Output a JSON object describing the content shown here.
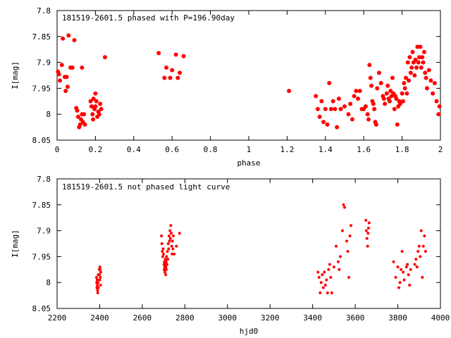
{
  "chart_data": [
    {
      "type": "scatter",
      "title": "181519-2601.5 phased with P=196.90day",
      "xlabel": "phase",
      "ylabel": "I[mag]",
      "xlim": [
        0,
        2
      ],
      "ylim": [
        8.05,
        7.8
      ],
      "y_inverted": true,
      "x_ticks": [
        "0",
        "0.2",
        "0.4",
        "0.6",
        "0.8",
        "1",
        "1.2",
        "1.4",
        "1.6",
        "1.8",
        "2"
      ],
      "x_tick_values": [
        0,
        0.2,
        0.4,
        0.6,
        0.8,
        1.0,
        1.2,
        1.4,
        1.6,
        1.8,
        2.0
      ],
      "y_ticks": [
        "7.8",
        "7.85",
        "7.9",
        "7.95",
        "8",
        "8.05"
      ],
      "y_tick_values": [
        7.8,
        7.85,
        7.9,
        7.95,
        8.0,
        8.05
      ],
      "marker_color": "#ff0000",
      "series": [
        {
          "points": [
            [
              0.005,
              7.918
            ],
            [
              0.01,
              7.923
            ],
            [
              0.015,
              7.935
            ],
            [
              0.025,
              7.905
            ],
            [
              0.03,
              7.854
            ],
            [
              0.04,
              7.928
            ],
            [
              0.045,
              7.955
            ],
            [
              0.05,
              7.928
            ],
            [
              0.055,
              7.947
            ],
            [
              0.06,
              7.848
            ],
            [
              0.07,
              7.91
            ],
            [
              0.08,
              7.91
            ],
            [
              0.09,
              7.857
            ],
            [
              0.1,
              7.988
            ],
            [
              0.105,
              7.993
            ],
            [
              0.11,
              8.005
            ],
            [
              0.115,
              8.025
            ],
            [
              0.12,
              8.02
            ],
            [
              0.125,
              8.01
            ],
            [
              0.13,
              8.0
            ],
            [
              0.135,
              8.015
            ],
            [
              0.13,
              7.91
            ],
            [
              0.14,
              8.0
            ],
            [
              0.145,
              8.02
            ],
            [
              0.175,
              7.975
            ],
            [
              0.18,
              7.985
            ],
            [
              0.185,
              8.0
            ],
            [
              0.188,
              8.01
            ],
            [
              0.19,
              7.97
            ],
            [
              0.195,
              7.99
            ],
            [
              0.2,
              7.985
            ],
            [
              0.2,
              7.96
            ],
            [
              0.205,
              7.975
            ],
            [
              0.21,
              8.005
            ],
            [
              0.215,
              7.995
            ],
            [
              0.22,
              8.0
            ],
            [
              0.225,
              7.98
            ],
            [
              0.23,
              7.99
            ],
            [
              0.25,
              7.89
            ],
            [
              0.53,
              7.882
            ],
            [
              0.56,
              7.93
            ],
            [
              0.57,
              7.91
            ],
            [
              0.59,
              7.93
            ],
            [
              0.6,
              7.915
            ],
            [
              0.62,
              7.885
            ],
            [
              0.63,
              7.93
            ],
            [
              0.64,
              7.92
            ],
            [
              0.66,
              7.888
            ],
            [
              1.21,
              7.955
            ],
            [
              1.35,
              7.965
            ],
            [
              1.36,
              7.99
            ],
            [
              1.37,
              8.005
            ],
            [
              1.38,
              7.975
            ],
            [
              1.39,
              8.015
            ],
            [
              1.4,
              7.99
            ],
            [
              1.41,
              8.02
            ],
            [
              1.42,
              7.94
            ],
            [
              1.43,
              7.99
            ],
            [
              1.44,
              7.975
            ],
            [
              1.45,
              7.99
            ],
            [
              1.46,
              8.025
            ],
            [
              1.47,
              7.97
            ],
            [
              1.48,
              7.99
            ],
            [
              1.5,
              7.985
            ],
            [
              1.52,
              8.0
            ],
            [
              1.53,
              7.98
            ],
            [
              1.54,
              8.01
            ],
            [
              1.55,
              7.965
            ],
            [
              1.56,
              7.955
            ],
            [
              1.57,
              7.97
            ],
            [
              1.58,
              7.955
            ],
            [
              1.59,
              7.99
            ],
            [
              1.6,
              7.99
            ],
            [
              1.61,
              7.985
            ],
            [
              1.62,
              8.0
            ],
            [
              1.625,
              8.01
            ],
            [
              1.63,
              7.905
            ],
            [
              1.635,
              7.93
            ],
            [
              1.64,
              7.945
            ],
            [
              1.645,
              7.975
            ],
            [
              1.65,
              7.98
            ],
            [
              1.655,
              7.99
            ],
            [
              1.66,
              8.015
            ],
            [
              1.665,
              8.02
            ],
            [
              1.67,
              7.95
            ],
            [
              1.68,
              7.92
            ],
            [
              1.69,
              7.94
            ],
            [
              1.7,
              7.965
            ],
            [
              1.705,
              7.97
            ],
            [
              1.71,
              7.98
            ],
            [
              1.72,
              7.96
            ],
            [
              1.725,
              7.945
            ],
            [
              1.73,
              7.97
            ],
            [
              1.735,
              7.975
            ],
            [
              1.74,
              7.955
            ],
            [
              1.745,
              7.965
            ],
            [
              1.75,
              7.93
            ],
            [
              1.755,
              7.96
            ],
            [
              1.76,
              7.99
            ],
            [
              1.765,
              7.965
            ],
            [
              1.77,
              7.97
            ],
            [
              1.775,
              8.02
            ],
            [
              1.78,
              7.985
            ],
            [
              1.785,
              7.975
            ],
            [
              1.79,
              7.98
            ],
            [
              1.8,
              7.96
            ],
            [
              1.805,
              7.975
            ],
            [
              1.81,
              7.94
            ],
            [
              1.815,
              7.95
            ],
            [
              1.82,
              7.93
            ],
            [
              1.825,
              7.96
            ],
            [
              1.83,
              7.9
            ],
            [
              1.835,
              7.935
            ],
            [
              1.84,
              7.89
            ],
            [
              1.845,
              7.92
            ],
            [
              1.85,
              7.91
            ],
            [
              1.855,
              7.88
            ],
            [
              1.86,
              7.9
            ],
            [
              1.865,
              7.925
            ],
            [
              1.87,
              7.895
            ],
            [
              1.875,
              7.91
            ],
            [
              1.88,
              7.87
            ],
            [
              1.885,
              7.9
            ],
            [
              1.89,
              7.89
            ],
            [
              1.895,
              7.87
            ],
            [
              1.9,
              7.91
            ],
            [
              1.905,
              7.89
            ],
            [
              1.91,
              7.9
            ],
            [
              1.915,
              7.88
            ],
            [
              1.92,
              7.92
            ],
            [
              1.925,
              7.93
            ],
            [
              1.93,
              7.95
            ],
            [
              1.94,
              7.915
            ],
            [
              1.95,
              7.935
            ],
            [
              1.96,
              7.96
            ],
            [
              1.97,
              7.94
            ],
            [
              1.98,
              7.975
            ],
            [
              1.99,
              8.0
            ],
            [
              1.995,
              7.985
            ]
          ]
        }
      ]
    },
    {
      "type": "scatter",
      "title": "181519-2601.5 not phased light curve",
      "xlabel": "hjd0",
      "ylabel": "I[mag]",
      "xlim": [
        2200,
        4000
      ],
      "ylim": [
        8.05,
        7.8
      ],
      "y_inverted": true,
      "x_ticks": [
        "2200",
        "2400",
        "2600",
        "2800",
        "3000",
        "3200",
        "3400",
        "3600",
        "3800",
        "4000"
      ],
      "x_tick_values": [
        2200,
        2400,
        2600,
        2800,
        3000,
        3200,
        3400,
        3600,
        3800,
        4000
      ],
      "y_ticks": [
        "7.8",
        "7.85",
        "7.9",
        "7.95",
        "8",
        "8.05"
      ],
      "y_tick_values": [
        7.8,
        7.85,
        7.9,
        7.95,
        8.0,
        8.05
      ],
      "marker_color": "#ff0000",
      "series": [
        {
          "points": [
            [
              2385,
              7.99
            ],
            [
              2386,
              8.0
            ],
            [
              2387,
              8.01
            ],
            [
              2388,
              7.995
            ],
            [
              2389,
              8.005
            ],
            [
              2390,
              8.015
            ],
            [
              2391,
              8.02
            ],
            [
              2392,
              8.0
            ],
            [
              2393,
              7.985
            ],
            [
              2394,
              8.01
            ],
            [
              2398,
              7.975
            ],
            [
              2399,
              7.985
            ],
            [
              2400,
              7.995
            ],
            [
              2401,
              7.97
            ],
            [
              2402,
              7.975
            ],
            [
              2403,
              7.99
            ],
            [
              2404,
              8.005
            ],
            [
              2405,
              7.98
            ],
            [
              2690,
              7.91
            ],
            [
              2692,
              7.925
            ],
            [
              2694,
              7.94
            ],
            [
              2696,
              7.95
            ],
            [
              2698,
              7.935
            ],
            [
              2700,
              7.945
            ],
            [
              2702,
              7.965
            ],
            [
              2703,
              7.975
            ],
            [
              2704,
              7.96
            ],
            [
              2705,
              7.97
            ],
            [
              2706,
              7.98
            ],
            [
              2707,
              7.965
            ],
            [
              2708,
              7.955
            ],
            [
              2709,
              7.975
            ],
            [
              2710,
              7.985
            ],
            [
              2711,
              7.97
            ],
            [
              2712,
              7.96
            ],
            [
              2713,
              7.975
            ],
            [
              2714,
              7.95
            ],
            [
              2716,
              7.965
            ],
            [
              2718,
              7.94
            ],
            [
              2720,
              7.955
            ],
            [
              2722,
              7.925
            ],
            [
              2724,
              7.935
            ],
            [
              2726,
              7.91
            ],
            [
              2728,
              7.92
            ],
            [
              2730,
              7.9
            ],
            [
              2732,
              7.915
            ],
            [
              2734,
              7.89
            ],
            [
              2736,
              7.905
            ],
            [
              2738,
              7.93
            ],
            [
              2740,
              7.945
            ],
            [
              2742,
              7.92
            ],
            [
              2744,
              7.935
            ],
            [
              2746,
              7.91
            ],
            [
              2750,
              7.945
            ],
            [
              2760,
              7.93
            ],
            [
              2775,
              7.905
            ],
            [
              3425,
              7.98
            ],
            [
              3430,
              7.99
            ],
            [
              3435,
              8.02
            ],
            [
              3440,
              8.0
            ],
            [
              3445,
              7.985
            ],
            [
              3450,
              8.01
            ],
            [
              3455,
              7.98
            ],
            [
              3460,
              8.005
            ],
            [
              3465,
              7.995
            ],
            [
              3470,
              8.02
            ],
            [
              3475,
              7.975
            ],
            [
              3480,
              7.965
            ],
            [
              3485,
              7.99
            ],
            [
              3490,
              8.02
            ],
            [
              3500,
              7.97
            ],
            [
              3510,
              7.93
            ],
            [
              3520,
              7.96
            ],
            [
              3525,
              7.975
            ],
            [
              3530,
              7.95
            ],
            [
              3540,
              7.9
            ],
            [
              3545,
              7.85
            ],
            [
              3550,
              7.855
            ],
            [
              3560,
              7.92
            ],
            [
              3565,
              7.94
            ],
            [
              3570,
              7.99
            ],
            [
              3575,
              7.91
            ],
            [
              3580,
              7.89
            ],
            [
              3650,
              7.88
            ],
            [
              3652,
              7.9
            ],
            [
              3655,
              7.915
            ],
            [
              3658,
              7.93
            ],
            [
              3660,
              7.905
            ],
            [
              3662,
              7.895
            ],
            [
              3665,
              7.885
            ],
            [
              3780,
              7.96
            ],
            [
              3790,
              7.99
            ],
            [
              3800,
              7.97
            ],
            [
              3805,
              8.01
            ],
            [
              3810,
              8.0
            ],
            [
              3815,
              7.975
            ],
            [
              3820,
              7.94
            ],
            [
              3825,
              7.98
            ],
            [
              3830,
              7.995
            ],
            [
              3840,
              7.97
            ],
            [
              3845,
              7.965
            ],
            [
              3850,
              7.985
            ],
            [
              3855,
              8.005
            ],
            [
              3860,
              7.975
            ],
            [
              3880,
              7.965
            ],
            [
              3885,
              7.955
            ],
            [
              3890,
              7.97
            ],
            [
              3895,
              7.94
            ],
            [
              3900,
              7.93
            ],
            [
              3905,
              7.95
            ],
            [
              3910,
              7.9
            ],
            [
              3915,
              7.99
            ],
            [
              3920,
              7.93
            ],
            [
              3925,
              7.91
            ],
            [
              3930,
              7.94
            ]
          ]
        }
      ]
    }
  ]
}
